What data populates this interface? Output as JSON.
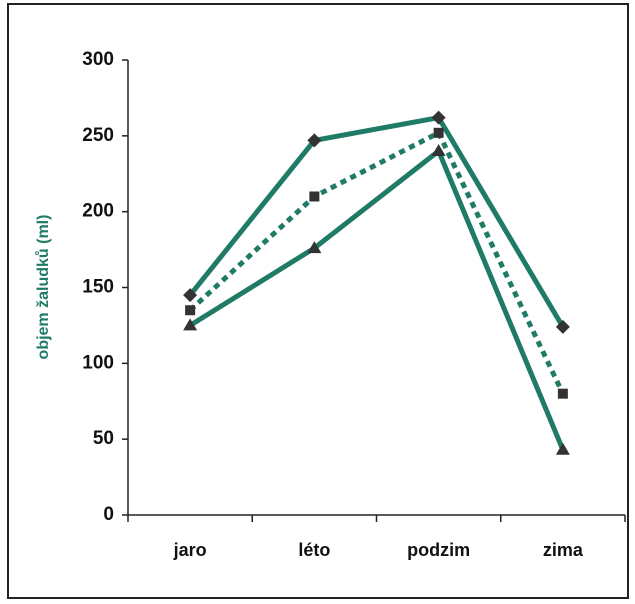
{
  "chart_data": {
    "type": "line",
    "y_label": "objem žaludků (ml)",
    "categories": [
      "jaro",
      "léto",
      "podzim",
      "zima"
    ],
    "series": [
      {
        "color": "#1f7a66",
        "marker": "diamond",
        "marker_color": "#333333",
        "line_style": "solid",
        "values": [
          145,
          247,
          262,
          124
        ]
      },
      {
        "color": "#1f7a66",
        "marker": "square",
        "marker_color": "#333333",
        "line_style": "dotted",
        "values": [
          135,
          210,
          252,
          80
        ]
      },
      {
        "color": "#1f7a66",
        "marker": "triangle",
        "marker_color": "#333333",
        "line_style": "solid",
        "values": [
          125,
          176,
          240,
          43
        ]
      }
    ],
    "ylim": [
      0,
      300
    ],
    "yticks": [
      0,
      50,
      100,
      150,
      200,
      250,
      300
    ],
    "grid": false
  }
}
